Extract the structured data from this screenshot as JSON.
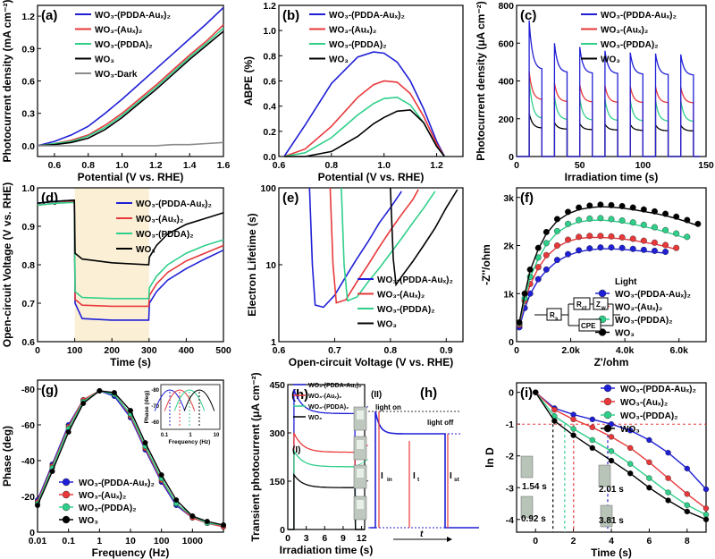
{
  "colors": {
    "blue": "#1f1fd6",
    "red": "#e8383a",
    "green": "#2fcf8a",
    "black": "#000000",
    "gray": "#8a8a8a",
    "shade": "#fbf0d6"
  },
  "chart_data": [
    {
      "panel": "(a)",
      "type": "line",
      "xlabel": "Potential (V vs. RHE)",
      "ylabel": "Photocurrent density (mA cm⁻²)",
      "xlim": [
        0.5,
        1.6
      ],
      "ylim": [
        -0.1,
        1.3
      ],
      "xticks": [
        "0.6",
        "0.8",
        "1.0",
        "1.2",
        "1.4",
        "1.6"
      ],
      "yticks": [
        "0.0",
        "0.3",
        "0.6",
        "0.9",
        "1.2"
      ],
      "x": [
        0.5,
        0.6,
        0.7,
        0.8,
        0.9,
        1.0,
        1.1,
        1.2,
        1.3,
        1.4,
        1.5,
        1.6
      ],
      "series": [
        {
          "name": "WO₃-(PDDA-Auₓ)₂",
          "values": [
            0.0,
            0.04,
            0.1,
            0.18,
            0.3,
            0.43,
            0.57,
            0.71,
            0.85,
            0.99,
            1.13,
            1.28
          ]
        },
        {
          "name": "WO₃-(Auₓ)₂",
          "values": [
            0.0,
            0.02,
            0.05,
            0.1,
            0.19,
            0.3,
            0.43,
            0.56,
            0.7,
            0.84,
            0.97,
            1.12
          ]
        },
        {
          "name": "WO₃-(PDDA)₂",
          "values": [
            0.0,
            0.02,
            0.04,
            0.09,
            0.17,
            0.28,
            0.41,
            0.54,
            0.68,
            0.82,
            0.95,
            1.09
          ]
        },
        {
          "name": "WO₃",
          "values": [
            0.0,
            0.01,
            0.03,
            0.07,
            0.15,
            0.26,
            0.39,
            0.52,
            0.66,
            0.8,
            0.93,
            1.06
          ]
        },
        {
          "name": "WO₃-Dark",
          "values": [
            0.0,
            0.0,
            0.0,
            0.0,
            0.0,
            0.0,
            0.0,
            0.0,
            0.01,
            0.01,
            0.02,
            0.03
          ]
        }
      ]
    },
    {
      "panel": "(b)",
      "type": "line",
      "xlabel": "Potential (V vs. RHE)",
      "ylabel": "ABPE (%)",
      "xlim": [
        0.6,
        1.3
      ],
      "ylim": [
        0,
        1.2
      ],
      "xticks": [
        "0.6",
        "0.8",
        "1.0",
        "1.2"
      ],
      "yticks": [
        "0.0",
        "0.2",
        "0.4",
        "0.6",
        "0.8",
        "1.0",
        "1.2"
      ],
      "x": [
        0.62,
        0.7,
        0.8,
        0.9,
        0.96,
        1.0,
        1.05,
        1.1,
        1.15,
        1.2,
        1.23
      ],
      "series": [
        {
          "name": "WO₃-(PDDA-Auₓ)₂",
          "values": [
            0.0,
            0.25,
            0.58,
            0.79,
            0.83,
            0.82,
            0.75,
            0.6,
            0.38,
            0.12,
            0.0
          ]
        },
        {
          "name": "WO₃-(Auₓ)₂",
          "values": [
            0.0,
            0.06,
            0.24,
            0.47,
            0.57,
            0.6,
            0.59,
            0.5,
            0.32,
            0.1,
            0.0
          ]
        },
        {
          "name": "WO₃-(PDDA)₂",
          "values": [
            0.0,
            0.03,
            0.15,
            0.33,
            0.42,
            0.46,
            0.47,
            0.41,
            0.27,
            0.08,
            0.0
          ]
        },
        {
          "name": "WO₃",
          "values": [
            0.0,
            0.0,
            0.04,
            0.16,
            0.26,
            0.31,
            0.36,
            0.37,
            0.27,
            0.08,
            0.0
          ]
        }
      ]
    },
    {
      "panel": "(c)",
      "type": "line",
      "xlabel": "Irradiation time (s)",
      "ylabel": "Photocurrent density (μA cm⁻²)",
      "xlim": [
        0,
        150
      ],
      "ylim": [
        0,
        800
      ],
      "xticks": [
        "0",
        "50",
        "100",
        "150"
      ],
      "yticks": [
        "0",
        "200",
        "400",
        "600",
        "800"
      ],
      "cycles": {
        "on": [
          10,
          30,
          50,
          70,
          90,
          110,
          130
        ],
        "off": [
          20,
          40,
          60,
          80,
          100,
          120,
          140
        ]
      },
      "series": [
        {
          "name": "WO₃-(PDDA-Auₓ)₂",
          "peaks": [
            720,
            600,
            580,
            560,
            550,
            545,
            540
          ],
          "steady": [
            460,
            445,
            440,
            438,
            435,
            432,
            430
          ]
        },
        {
          "name": "WO₃-(Auₓ)₂",
          "peaks": [
            450,
            390,
            380,
            375,
            372,
            370,
            368
          ],
          "steady": [
            300,
            290,
            288,
            286,
            285,
            284,
            283
          ]
        },
        {
          "name": "WO₃-(PDDA)₂",
          "peaks": [
            410,
            320,
            310,
            305,
            302,
            300,
            298
          ],
          "steady": [
            200,
            195,
            192,
            190,
            188,
            186,
            185
          ]
        },
        {
          "name": "WO₃",
          "peaks": [
            230,
            180,
            175,
            172,
            170,
            168,
            166
          ],
          "steady": [
            150,
            145,
            142,
            140,
            138,
            136,
            135
          ]
        }
      ]
    },
    {
      "panel": "(d)",
      "type": "line",
      "xlabel": "Time (s)",
      "ylabel": "Open-circuit Voltage (V vs. RHE)",
      "xlim": [
        0,
        500
      ],
      "ylim": [
        0.6,
        1.0
      ],
      "xticks": [
        "0",
        "100",
        "200",
        "300",
        "400",
        "500"
      ],
      "yticks": [
        "0.6",
        "0.7",
        "0.8",
        "0.9",
        "1.0"
      ],
      "light_on": [
        100,
        300
      ],
      "x": [
        0,
        50,
        99,
        101,
        120,
        200,
        299,
        301,
        320,
        350,
        400,
        450,
        500
      ],
      "series": [
        {
          "name": "WO₃-(PDDA-Auₓ)₂",
          "values": [
            0.96,
            0.965,
            0.968,
            0.7,
            0.66,
            0.656,
            0.656,
            0.7,
            0.73,
            0.76,
            0.79,
            0.815,
            0.838
          ]
        },
        {
          "name": "WO₃-(Auₓ)₂",
          "values": [
            0.955,
            0.96,
            0.965,
            0.71,
            0.695,
            0.692,
            0.692,
            0.72,
            0.75,
            0.78,
            0.81,
            0.83,
            0.85
          ]
        },
        {
          "name": "WO₃-(PDDA)₂",
          "values": [
            0.955,
            0.96,
            0.962,
            0.73,
            0.715,
            0.712,
            0.712,
            0.74,
            0.77,
            0.8,
            0.83,
            0.85,
            0.865
          ]
        },
        {
          "name": "WO₃",
          "values": [
            0.96,
            0.965,
            0.968,
            0.83,
            0.815,
            0.805,
            0.8,
            0.82,
            0.85,
            0.88,
            0.905,
            0.92,
            0.935
          ]
        }
      ]
    },
    {
      "panel": "(e)",
      "type": "line",
      "xlabel": "Open-circuit Voltage (V vs. RHE)",
      "ylabel": "Electron Lifetime (s)",
      "xlim": [
        0.6,
        0.93
      ],
      "ylim": [
        1,
        100
      ],
      "yscale": "log",
      "xticks": [
        "0.6",
        "0.7",
        "0.8",
        "0.9"
      ],
      "yticks": [
        "1",
        "10",
        "100"
      ],
      "series": [
        {
          "name": "WO₃-(PDDA-Auₓ)₂",
          "x": [
            0.655,
            0.66,
            0.665,
            0.68,
            0.7,
            0.72,
            0.74,
            0.76,
            0.78,
            0.8,
            0.82
          ],
          "values": [
            100,
            10,
            3,
            2.8,
            4,
            7,
            12,
            20,
            35,
            55,
            90
          ]
        },
        {
          "name": "WO₃-(Auₓ)₂",
          "x": [
            0.692,
            0.697,
            0.703,
            0.72,
            0.74,
            0.76,
            0.78,
            0.8,
            0.82,
            0.84,
            0.85
          ],
          "values": [
            100,
            10,
            3.2,
            3.5,
            6,
            10,
            17,
            28,
            45,
            70,
            95
          ]
        },
        {
          "name": "WO₃-(PDDA)₂",
          "x": [
            0.712,
            0.717,
            0.723,
            0.74,
            0.76,
            0.78,
            0.8,
            0.82,
            0.84,
            0.86,
            0.88
          ],
          "values": [
            100,
            10,
            3.4,
            3.8,
            6,
            9,
            14,
            22,
            35,
            55,
            90
          ]
        },
        {
          "name": "WO₃",
          "x": [
            0.8,
            0.805,
            0.81,
            0.82,
            0.84,
            0.86,
            0.88,
            0.9,
            0.92
          ],
          "values": [
            100,
            12,
            5.5,
            7,
            11,
            18,
            30,
            55,
            95
          ]
        }
      ]
    },
    {
      "panel": "(f)",
      "type": "scatter",
      "xlabel": "Z'/ohm",
      "ylabel": "-Z''/ohm",
      "xlim": [
        0,
        7000
      ],
      "ylim": [
        0,
        3200
      ],
      "xticks": [
        "0",
        "2.0k",
        "4.0k",
        "6.0k"
      ],
      "yticks": [
        "0",
        "1k",
        "2k",
        "3k"
      ],
      "legend_title": "Light",
      "circuit": {
        "r1": "R",
        "r1_sub": "s",
        "r2": "R",
        "r2_sub": "ct",
        "r3": "Z",
        "r3_sub": "w",
        "c": "CPE"
      },
      "series": [
        {
          "name": "WO₃-(PDDA-Auₓ)₂",
          "x": [
            100,
            300,
            500,
            800,
            1100,
            1500,
            1900,
            2300,
            2700,
            3100,
            3500,
            3900,
            4300,
            4700,
            5100,
            5500
          ],
          "values": [
            300,
            700,
            1000,
            1300,
            1500,
            1700,
            1820,
            1900,
            1940,
            1960,
            1960,
            1950,
            1930,
            1910,
            1890,
            1870
          ]
        },
        {
          "name": "WO₃-(Auₓ)₂",
          "x": [
            100,
            300,
            500,
            800,
            1100,
            1500,
            1900,
            2300,
            2700,
            3100,
            3500,
            3900,
            4300,
            4700,
            5100,
            5500,
            5900
          ],
          "values": [
            350,
            850,
            1200,
            1550,
            1800,
            2000,
            2120,
            2180,
            2200,
            2200,
            2190,
            2170,
            2140,
            2100,
            2060,
            2010,
            1950
          ]
        },
        {
          "name": "WO₃-(PDDA)₂",
          "x": [
            100,
            300,
            500,
            800,
            1100,
            1500,
            1900,
            2300,
            2700,
            3100,
            3500,
            3900,
            4300,
            4700,
            5100,
            5500,
            5900,
            6300
          ],
          "values": [
            380,
            900,
            1350,
            1750,
            2050,
            2300,
            2450,
            2530,
            2560,
            2570,
            2550,
            2520,
            2480,
            2430,
            2380,
            2320,
            2250,
            2180
          ]
        },
        {
          "name": "WO₃",
          "x": [
            100,
            300,
            500,
            800,
            1100,
            1500,
            1900,
            2300,
            2700,
            3100,
            3500,
            3900,
            4300,
            4700,
            5100,
            5500,
            5900,
            6300,
            6700
          ],
          "values": [
            400,
            1000,
            1500,
            1950,
            2280,
            2550,
            2700,
            2790,
            2830,
            2850,
            2840,
            2820,
            2790,
            2750,
            2710,
            2660,
            2600,
            2530,
            2450
          ]
        }
      ]
    },
    {
      "panel": "(g)",
      "type": "line",
      "xlabel": "Frequency (Hz)",
      "ylabel": "Phase (deg)",
      "xlim": [
        0.01,
        10000
      ],
      "ylim": [
        0,
        -85
      ],
      "xscale": "log",
      "xticks": [
        "0.01",
        "0.1",
        "1",
        "10",
        "100",
        "1000"
      ],
      "yticks": [
        "0",
        "-20",
        "-40",
        "-60",
        "-80"
      ],
      "inset": {
        "xlabel": "Frequency (Hz)",
        "ylabel": "Phase (deg)",
        "xticks": [
          "0.1",
          "1",
          "10"
        ],
        "yticks": [
          "-80",
          "-70",
          "-60"
        ]
      },
      "x": [
        0.01,
        0.03,
        0.1,
        0.3,
        1,
        3,
        10,
        30,
        100,
        300,
        1000,
        3000,
        10000
      ],
      "series": [
        {
          "name": "WO₃-(PDDA-Auₓ)₂",
          "values": [
            -18,
            -38,
            -60,
            -74,
            -79,
            -76,
            -64,
            -46,
            -28,
            -15,
            -8,
            -5,
            -3
          ]
        },
        {
          "name": "WO₃-(Auₓ)₂",
          "values": [
            -17,
            -37,
            -59,
            -74,
            -79,
            -77,
            -65,
            -47,
            -29,
            -16,
            -8,
            -5,
            -3
          ]
        },
        {
          "name": "WO₃-(PDDA)₂",
          "values": [
            -16,
            -36,
            -58,
            -73,
            -79,
            -77,
            -66,
            -48,
            -30,
            -16,
            -9,
            -5,
            -4
          ]
        },
        {
          "name": "WO₃",
          "values": [
            -15,
            -34,
            -56,
            -72,
            -79,
            -78,
            -68,
            -50,
            -32,
            -18,
            -9,
            -6,
            -4
          ]
        }
      ]
    },
    {
      "panel": "(h)",
      "type": "line",
      "xlabel": "Irradiation time (s)",
      "ylabel": "Transient photocurrent (μA cm⁻²)",
      "xlim": [
        0,
        12.5
      ],
      "ylim": [
        0,
        450
      ],
      "xticks": [
        "0",
        "3",
        "6",
        "9",
        "12"
      ],
      "yticks": [
        "0",
        "150",
        "300",
        "450"
      ],
      "label_I": "(I)",
      "label_II": "(II)",
      "label_h": "(h)",
      "annotations": {
        "light_on": "light on",
        "light_off": "light off",
        "I_in": "I",
        "I_in_sub": "in",
        "I_t": "I",
        "I_t_sub": "t",
        "I_st": "I",
        "I_st_sub": "st",
        "t": "t"
      },
      "series": [
        {
          "name": "WO₃-(PDDA-Auₓ)₂",
          "peak": 435,
          "steady": 360
        },
        {
          "name": "WO₃-(Auₓ)₂",
          "peak": 300,
          "steady": 240
        },
        {
          "name": "WO₃-(PDDA)₂",
          "peak": 245,
          "steady": 195
        },
        {
          "name": "WO₃",
          "peak": 170,
          "steady": 130
        }
      ]
    },
    {
      "panel": "(i)",
      "type": "line",
      "xlabel": "Time (s)",
      "ylabel": "ln D",
      "xlim": [
        -1,
        9
      ],
      "ylim": [
        -4.4,
        0.3
      ],
      "xticks": [
        "0",
        "2",
        "4",
        "6",
        "8"
      ],
      "yticks": [
        "0",
        "-1",
        "-2",
        "-3",
        "-4"
      ],
      "times": {
        "a": "1.54 s",
        "b": "2.01 s",
        "c": "0.92 s",
        "d": "3.81 s"
      },
      "series": [
        {
          "name": "WO₃-(PDDA-Auₓ)₂",
          "x": [
            0,
            1,
            2,
            3,
            4,
            5,
            6,
            7,
            8,
            9
          ],
          "values": [
            0,
            -0.5,
            -0.7,
            -0.85,
            -1.0,
            -1.2,
            -1.5,
            -1.9,
            -2.4,
            -3.05
          ]
        },
        {
          "name": "WO₃-(Auₓ)₂",
          "x": [
            0,
            1,
            2,
            3,
            4,
            5,
            6,
            7,
            8,
            9
          ],
          "values": [
            0,
            -0.55,
            -0.85,
            -1.1,
            -1.4,
            -1.75,
            -2.2,
            -2.7,
            -3.2,
            -3.65
          ]
        },
        {
          "name": "WO₃-(PDDA)₂",
          "x": [
            0,
            1,
            2,
            3,
            4,
            5,
            6,
            7,
            8,
            9
          ],
          "values": [
            0,
            -0.75,
            -1.15,
            -1.5,
            -1.85,
            -2.25,
            -2.7,
            -3.15,
            -3.55,
            -3.85
          ]
        },
        {
          "name": "WO₃",
          "x": [
            0,
            1,
            2,
            3,
            4,
            5,
            6,
            7,
            8,
            9
          ],
          "values": [
            0,
            -0.9,
            -1.35,
            -1.75,
            -2.15,
            -2.55,
            -3.0,
            -3.4,
            -3.75,
            -4.0
          ]
        }
      ]
    }
  ]
}
